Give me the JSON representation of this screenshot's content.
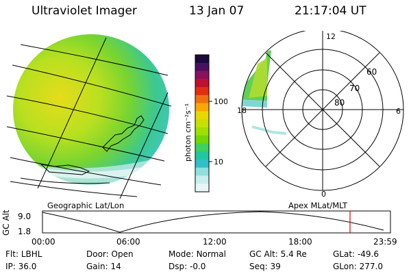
{
  "header": {
    "instrument": "Ultraviolet Imager",
    "date": "13 Jan 07",
    "time": "21:17:04 UT"
  },
  "colorbar": {
    "unit_label": "photon cm⁻²s⁻¹",
    "ticks": [
      "100",
      "10"
    ],
    "colors": [
      "#1a0a3a",
      "#4a1060",
      "#8a1060",
      "#c01030",
      "#e03010",
      "#f07010",
      "#f8a800",
      "#e8d800",
      "#c8e000",
      "#a0e000",
      "#70d800",
      "#40d060",
      "#20c8a0",
      "#30c0c8",
      "#90e0e0",
      "#c8eeee",
      "#e8f6f6"
    ]
  },
  "map_left": {
    "label": "Geographic Lat/Lon"
  },
  "map_right": {
    "label": "Apex MLat/MLT",
    "mlt_labels": {
      "top": "12",
      "left": "18",
      "right": "6",
      "bottom": "0"
    },
    "lat_labels": [
      "60",
      "70",
      "80"
    ]
  },
  "altitude_plot": {
    "axis_label": "GC Alt",
    "y_ticks": [
      "9.0",
      "1.8"
    ],
    "x_ticks": [
      "00:00",
      "06:00",
      "12:00",
      "18:00",
      "23:59"
    ],
    "marker_color": "#e00000"
  },
  "status": {
    "row1": [
      {
        "label": "Flt:",
        "value": "LBHL"
      },
      {
        "label": "Door:",
        "value": "Open"
      },
      {
        "label": "Mode:",
        "value": "Normal"
      },
      {
        "label": "GC Alt:",
        "value": "5.4 Re"
      },
      {
        "label": "GLat:",
        "value": "-49.6"
      }
    ],
    "row2": [
      {
        "label": "IP:",
        "value": "36.0"
      },
      {
        "label": "Gain:",
        "value": "14"
      },
      {
        "label": "Dsp:",
        "value": "-0.0"
      },
      {
        "label": "Seq:",
        "value": "39"
      },
      {
        "label": "GLon:",
        "value": "277.0"
      }
    ]
  }
}
